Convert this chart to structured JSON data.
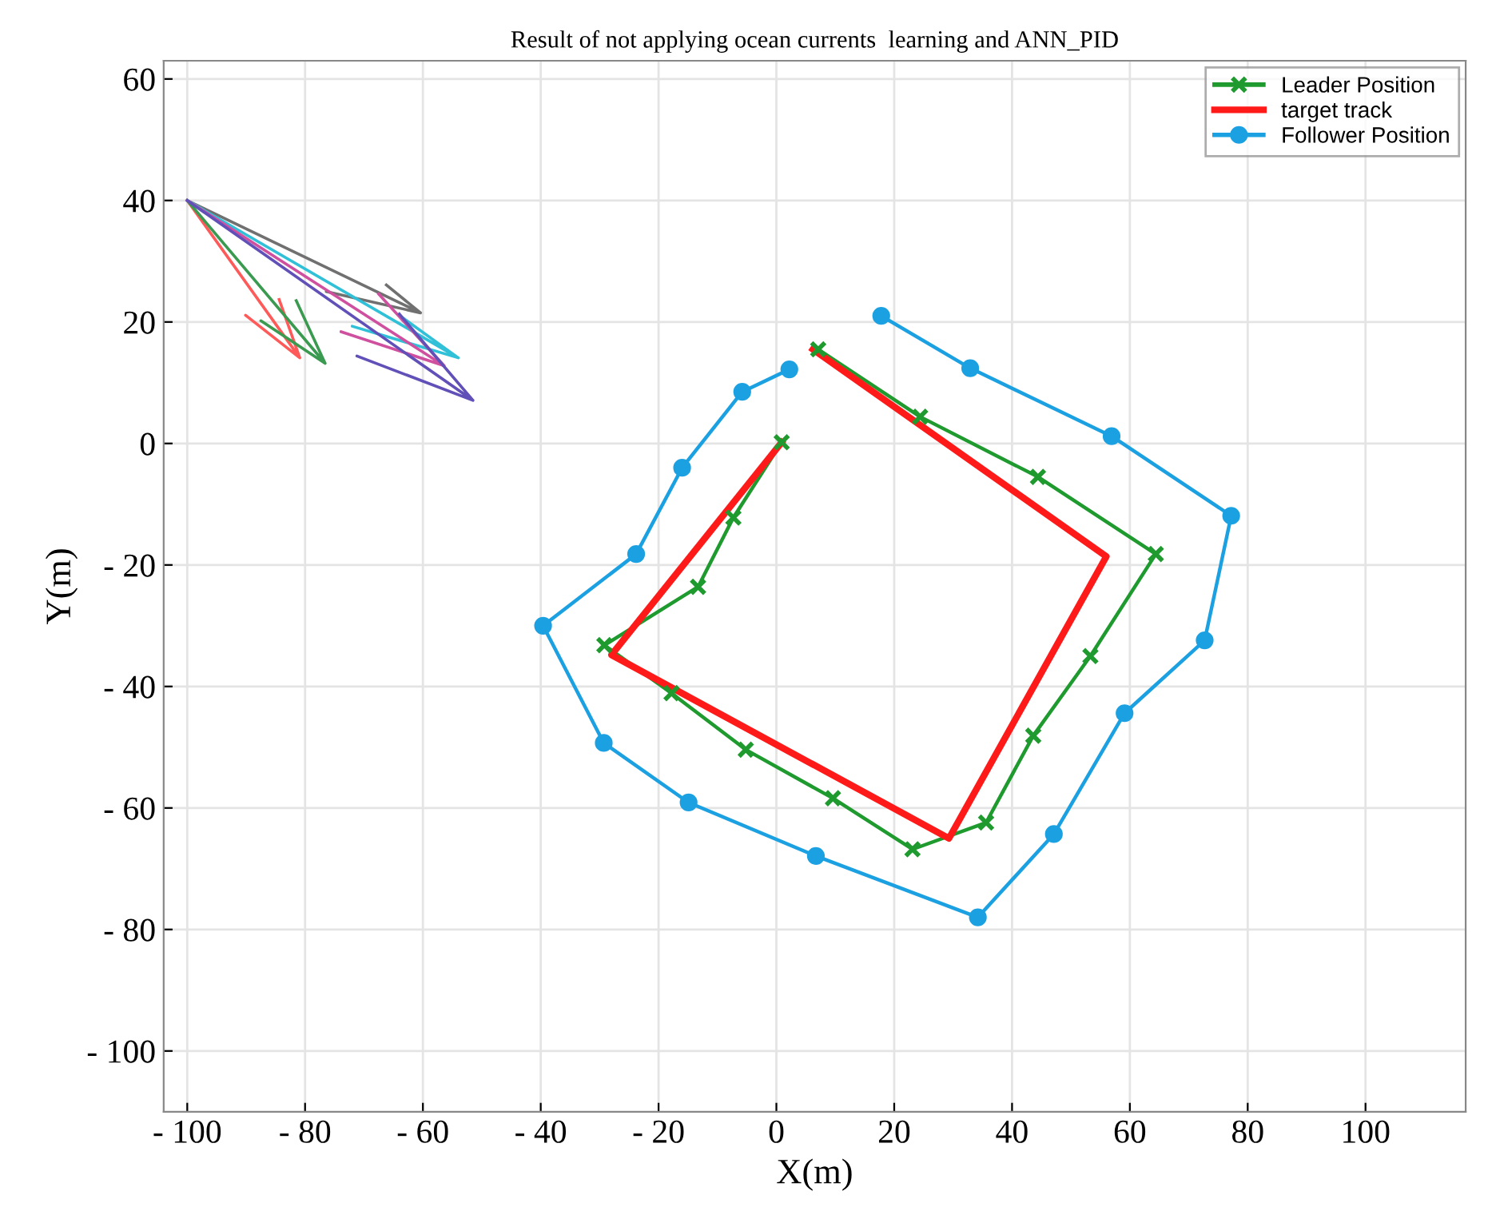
{
  "chart_data": {
    "type": "line",
    "title": "Result of not applying ocean currents  learning and ANN_PID",
    "xlabel": "X(m)",
    "ylabel": "Y(m)",
    "xlim": [
      -104,
      117
    ],
    "ylim": [
      -110,
      63
    ],
    "xticks": [
      {
        "value": -100,
        "label": "- 100"
      },
      {
        "value": -80,
        "label": "- 80"
      },
      {
        "value": -60,
        "label": "- 60"
      },
      {
        "value": -40,
        "label": "- 40"
      },
      {
        "value": -20,
        "label": "- 20"
      },
      0,
      20,
      40,
      60,
      80,
      100
    ],
    "yticks": [
      {
        "value": -100,
        "label": "- 100"
      },
      {
        "value": -80,
        "label": "- 80"
      },
      {
        "value": -60,
        "label": "- 60"
      },
      {
        "value": -40,
        "label": "- 40"
      },
      {
        "value": -20,
        "label": "- 20"
      },
      0,
      20,
      40,
      60
    ],
    "grid": true,
    "legend": "top right",
    "series": [
      {
        "name": "Leader Position",
        "color": "#1e9a2e",
        "marker": "cross",
        "x": [
          0.9,
          -7.3,
          -13.3,
          -29.2,
          -17.8,
          -5.2,
          9.6,
          23.1,
          35.6,
          43.6,
          53.3,
          64.4,
          44.4,
          24.4,
          7.1
        ],
        "values": [
          0.2,
          -12.2,
          -23.6,
          -33.2,
          -41.1,
          -50.4,
          -58.4,
          -66.8,
          -62.4,
          -48.1,
          -35,
          -18.2,
          -5.5,
          4.4,
          15.5
        ]
      },
      {
        "name": "target track",
        "color": "#ff1a1a",
        "marker": "none",
        "x": [
          0.9,
          -28,
          29.3,
          56,
          6.2
        ],
        "values": [
          0.2,
          -34.8,
          -65,
          -18.6,
          15.5
        ]
      },
      {
        "name": "Follower Position",
        "color": "#1ba1e2",
        "marker": "circle",
        "x": [
          17.8,
          32.9,
          56.9,
          77.2,
          72.7,
          59.1,
          47.1,
          34.2,
          6.7,
          -14.9,
          -29.3,
          -39.6,
          -23.8,
          -16,
          -5.8,
          2.2
        ],
        "values": [
          21,
          12.4,
          1.2,
          -11.9,
          -32.4,
          -44.4,
          -64.3,
          -78,
          -67.9,
          -59.1,
          -49.3,
          -30,
          -18.2,
          -4,
          8.5,
          12.2
        ]
      },
      {
        "color": "#ff5a5a",
        "marker": "none",
        "x": [
          -100,
          -80.9,
          -90.1,
          -80.9,
          -84.4
        ],
        "values": [
          40,
          14.1,
          21.1,
          14.1,
          23.7
        ]
      },
      {
        "color": "#3a9a50",
        "marker": "none",
        "x": [
          -100,
          -76.6,
          -87.5,
          -76.6,
          -81.5
        ],
        "values": [
          40,
          13.2,
          20.2,
          13.2,
          23.5
        ]
      },
      {
        "color": "#707070",
        "marker": "none",
        "x": [
          -100,
          -60.4,
          -76.4,
          -60.4,
          -66.2
        ],
        "values": [
          40,
          21.5,
          25,
          21.5,
          26.1
        ]
      },
      {
        "color": "#30c0d8",
        "marker": "none",
        "x": [
          -100,
          -54,
          -72,
          -54,
          -64
        ],
        "values": [
          40,
          14.1,
          19.3,
          14.1,
          21.1
        ]
      },
      {
        "color": "#d050a0",
        "marker": "none",
        "x": [
          -100,
          -56.4,
          -73.9,
          -56.4,
          -67.5
        ],
        "values": [
          40,
          12.8,
          18.4,
          12.8,
          24.6
        ]
      },
      {
        "color": "#6050b8",
        "marker": "none",
        "x": [
          -100,
          -51.5,
          -71.2,
          -51.5,
          -64
        ],
        "values": [
          40,
          7.1,
          14.4,
          7.1,
          21.3
        ]
      }
    ]
  }
}
